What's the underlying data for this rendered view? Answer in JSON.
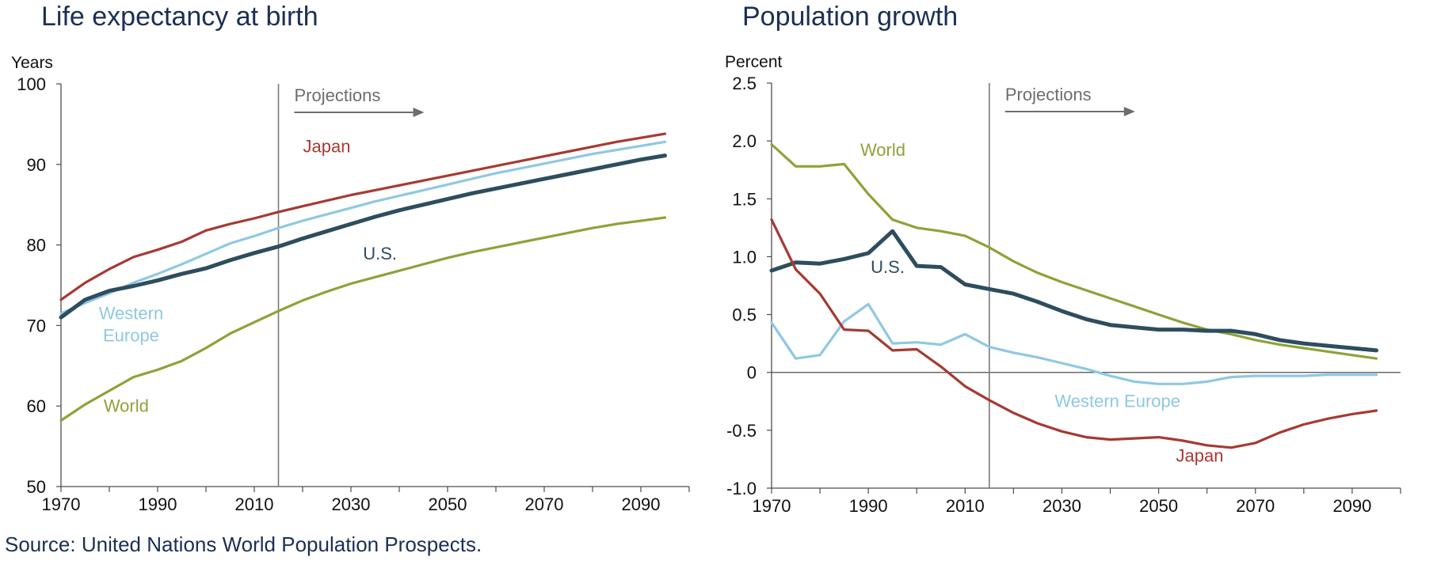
{
  "source": "Source: United Nations World Population Prospects.",
  "chart_data": [
    {
      "type": "line",
      "title": "Life expectancy at birth",
      "ylabel": "Years",
      "xlabel": "",
      "xlim": [
        1970,
        2100
      ],
      "ylim": [
        50,
        100
      ],
      "xticks": [
        1970,
        1990,
        2010,
        2030,
        2050,
        2070,
        2090
      ],
      "yticks": [
        50,
        60,
        70,
        80,
        90,
        100
      ],
      "ytick_labels": [
        "50",
        "60",
        "70",
        "80",
        "90",
        "100"
      ],
      "grid": false,
      "projection_year": 2015,
      "projection_label": "Projections",
      "x": [
        1970,
        1975,
        1980,
        1985,
        1990,
        1995,
        2000,
        2005,
        2010,
        2015,
        2020,
        2025,
        2030,
        2035,
        2040,
        2045,
        2050,
        2055,
        2060,
        2065,
        2070,
        2075,
        2080,
        2085,
        2090,
        2095
      ],
      "series": [
        {
          "name": "Japan",
          "color": "#a63a33",
          "label_anchor": [
            2025,
            91.5
          ],
          "values": [
            73.2,
            75.3,
            77.0,
            78.5,
            79.4,
            80.4,
            81.8,
            82.6,
            83.3,
            84.1,
            84.8,
            85.5,
            86.2,
            86.8,
            87.4,
            88.0,
            88.6,
            89.2,
            89.8,
            90.4,
            91.0,
            91.6,
            92.2,
            92.8,
            93.3,
            93.8
          ]
        },
        {
          "name": "Western\nEurope",
          "color": "#8fc8e2",
          "label_anchor": [
            1984.5,
            70.8
          ],
          "values": [
            71.5,
            72.8,
            74.0,
            75.3,
            76.4,
            77.6,
            78.9,
            80.2,
            81.1,
            82.1,
            83.0,
            83.8,
            84.6,
            85.4,
            86.1,
            86.8,
            87.5,
            88.2,
            88.9,
            89.5,
            90.1,
            90.7,
            91.3,
            91.8,
            92.3,
            92.8
          ]
        },
        {
          "name": "U.S.",
          "color": "#2e4d5e",
          "label_anchor": [
            2036,
            78.2
          ],
          "values": [
            71.0,
            73.2,
            74.3,
            74.9,
            75.6,
            76.4,
            77.1,
            78.1,
            79.0,
            79.8,
            80.8,
            81.7,
            82.6,
            83.5,
            84.3,
            85.0,
            85.7,
            86.4,
            87.0,
            87.6,
            88.2,
            88.8,
            89.4,
            90.0,
            90.6,
            91.1
          ]
        },
        {
          "name": "World",
          "color": "#8ea238",
          "label_anchor": [
            1983.5,
            59.3
          ],
          "values": [
            58.2,
            60.2,
            61.9,
            63.6,
            64.5,
            65.6,
            67.2,
            69.0,
            70.4,
            71.8,
            73.1,
            74.2,
            75.2,
            76.0,
            76.8,
            77.6,
            78.4,
            79.1,
            79.7,
            80.3,
            80.9,
            81.5,
            82.1,
            82.6,
            83.0,
            83.4
          ]
        }
      ]
    },
    {
      "type": "line",
      "title": "Population growth",
      "ylabel": "Percent",
      "xlabel": "",
      "xlim": [
        1970,
        2100
      ],
      "ylim": [
        -1.0,
        2.5
      ],
      "xticks": [
        1970,
        1990,
        2010,
        2030,
        2050,
        2070,
        2090
      ],
      "yticks": [
        -1.0,
        -0.5,
        0,
        0.5,
        1.0,
        1.5,
        2.0,
        2.5
      ],
      "ytick_labels": [
        "-1.0",
        "-0.5",
        "0",
        "0.5",
        "1.0",
        "1.5",
        "2.0",
        "2.5"
      ],
      "grid": false,
      "zero_line": true,
      "projection_year": 2015,
      "projection_label": "Projections",
      "x": [
        1970,
        1975,
        1980,
        1985,
        1990,
        1995,
        2000,
        2005,
        2010,
        2015,
        2020,
        2025,
        2030,
        2035,
        2040,
        2045,
        2050,
        2055,
        2060,
        2065,
        2070,
        2075,
        2080,
        2085,
        2090,
        2095
      ],
      "series": [
        {
          "name": "World",
          "color": "#8ea238",
          "label_anchor": [
            1993,
            1.87
          ],
          "values": [
            1.97,
            1.78,
            1.78,
            1.8,
            1.54,
            1.32,
            1.25,
            1.22,
            1.18,
            1.08,
            0.96,
            0.86,
            0.78,
            0.71,
            0.64,
            0.57,
            0.5,
            0.43,
            0.37,
            0.33,
            0.28,
            0.24,
            0.21,
            0.18,
            0.15,
            0.12
          ]
        },
        {
          "name": "U.S.",
          "color": "#2e4d5e",
          "label_anchor": [
            1994,
            0.86
          ],
          "values": [
            0.88,
            0.95,
            0.94,
            0.98,
            1.03,
            1.22,
            0.92,
            0.91,
            0.76,
            0.72,
            0.68,
            0.61,
            0.53,
            0.46,
            0.41,
            0.39,
            0.37,
            0.37,
            0.36,
            0.36,
            0.33,
            0.28,
            0.25,
            0.23,
            0.21,
            0.19
          ]
        },
        {
          "name": "Western Europe",
          "color": "#8fc8e2",
          "label_anchor": [
            2041.5,
            -0.3
          ],
          "values": [
            0.43,
            0.12,
            0.15,
            0.44,
            0.59,
            0.25,
            0.26,
            0.24,
            0.33,
            0.22,
            0.17,
            0.13,
            0.08,
            0.03,
            -0.03,
            -0.08,
            -0.1,
            -0.1,
            -0.08,
            -0.04,
            -0.03,
            -0.03,
            -0.03,
            -0.02,
            -0.02,
            -0.02
          ]
        },
        {
          "name": "Japan",
          "color": "#a63a33",
          "label_anchor": [
            2058.5,
            -0.77
          ],
          "values": [
            1.32,
            0.89,
            0.68,
            0.37,
            0.36,
            0.19,
            0.2,
            0.05,
            -0.12,
            -0.24,
            -0.35,
            -0.44,
            -0.51,
            -0.56,
            -0.58,
            -0.57,
            -0.56,
            -0.59,
            -0.63,
            -0.65,
            -0.61,
            -0.52,
            -0.45,
            -0.4,
            -0.36,
            -0.33
          ]
        }
      ]
    }
  ]
}
